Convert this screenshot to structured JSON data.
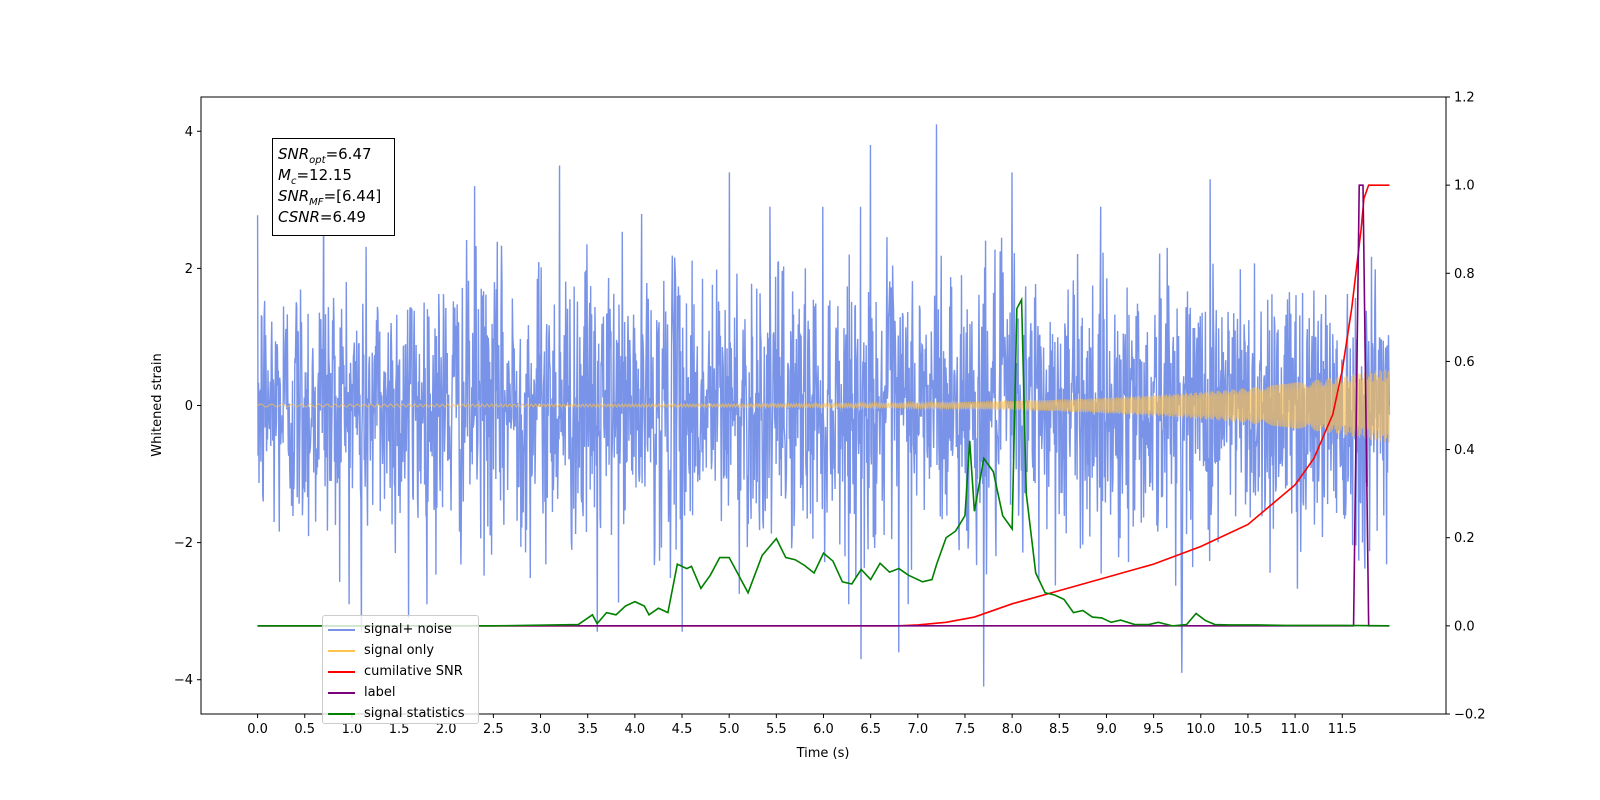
{
  "chart_data": {
    "type": "line",
    "xlabel": "Time (s)",
    "ylabel": "Whitened strain",
    "xlim": [
      -0.6,
      12.6
    ],
    "ylim": [
      -4.5,
      4.5
    ],
    "y2lim": [
      -0.2,
      1.2
    ],
    "x_ticks": [
      "0.0",
      "0.5",
      "1.0",
      "1.5",
      "2.0",
      "2.5",
      "3.0",
      "3.5",
      "4.0",
      "4.5",
      "5.0",
      "5.5",
      "6.0",
      "6.5",
      "7.0",
      "7.5",
      "8.0",
      "8.5",
      "9.0",
      "9.5",
      "10.0",
      "10.5",
      "11.0",
      "11.5"
    ],
    "y_ticks": [
      "4",
      "2",
      "0",
      "−2",
      "−4"
    ],
    "y2_ticks": [
      "1.2",
      "1.0",
      "0.8",
      "0.6",
      "0.4",
      "0.2",
      "0.0",
      "−0.2"
    ],
    "grid": false,
    "legend_position": "lower-left",
    "infobox": {
      "snr_opt_label": "SNR",
      "snr_opt_sub": "opt",
      "snr_opt_value": "=6.47",
      "mc_label": "M",
      "mc_sub": "c",
      "mc_value": "=12.15",
      "snr_mf_label": "SNR",
      "snr_mf_sub": "MF",
      "snr_mf_value": "=[6.44]",
      "csnr_label": "CSNR",
      "csnr_value": "=6.49"
    },
    "series": [
      {
        "name": "signal+ noise",
        "color": "#7893e8",
        "axis": "left",
        "x_range": [
          0,
          12
        ],
        "sample_points": 2400,
        "std": 1.0,
        "peak_values": [
          {
            "x": 0.7,
            "y": 3.0
          },
          {
            "x": 1.1,
            "y": -3.3
          },
          {
            "x": 1.6,
            "y": -3.1
          },
          {
            "x": 2.3,
            "y": 3.2
          },
          {
            "x": 3.2,
            "y": 3.5
          },
          {
            "x": 3.6,
            "y": -3.3
          },
          {
            "x": 4.5,
            "y": -3.3
          },
          {
            "x": 5.0,
            "y": 3.4
          },
          {
            "x": 6.4,
            "y": -3.7
          },
          {
            "x": 6.5,
            "y": 3.8
          },
          {
            "x": 6.8,
            "y": -3.6
          },
          {
            "x": 7.2,
            "y": 4.1
          },
          {
            "x": 7.7,
            "y": -4.1
          },
          {
            "x": 8.0,
            "y": 3.4
          },
          {
            "x": 9.8,
            "y": -3.9
          },
          {
            "x": 10.1,
            "y": 3.3
          }
        ]
      },
      {
        "name": "signal only",
        "color": "#ffc24d",
        "axis": "left",
        "x_range": [
          0,
          12
        ],
        "amplitude_start": 0.02,
        "amplitude_end": 0.55
      },
      {
        "name": "cumilative SNR",
        "color": "#ff0000",
        "axis": "right",
        "points": [
          [
            0,
            0
          ],
          [
            6.8,
            0
          ],
          [
            7.0,
            0.002
          ],
          [
            7.3,
            0.008
          ],
          [
            7.6,
            0.02
          ],
          [
            8.0,
            0.05
          ],
          [
            8.5,
            0.08
          ],
          [
            9.0,
            0.11
          ],
          [
            9.5,
            0.14
          ],
          [
            10.0,
            0.18
          ],
          [
            10.5,
            0.23
          ],
          [
            11.0,
            0.32
          ],
          [
            11.2,
            0.38
          ],
          [
            11.4,
            0.48
          ],
          [
            11.5,
            0.58
          ],
          [
            11.6,
            0.72
          ],
          [
            11.7,
            0.9
          ],
          [
            11.73,
            0.97
          ],
          [
            11.78,
            1.0
          ],
          [
            12.0,
            1.0
          ]
        ]
      },
      {
        "name": "label",
        "color": "#7b007b",
        "axis": "right",
        "points": [
          [
            0,
            0
          ],
          [
            11.62,
            0
          ],
          [
            11.68,
            1.0
          ],
          [
            11.72,
            1.0
          ],
          [
            11.78,
            0
          ],
          [
            12.0,
            0
          ]
        ]
      },
      {
        "name": "signal statistics",
        "color": "#008000",
        "axis": "right",
        "points": [
          [
            0.0,
            0.0
          ],
          [
            2.5,
            0.0
          ],
          [
            3.4,
            0.003
          ],
          [
            3.55,
            0.025
          ],
          [
            3.6,
            0.005
          ],
          [
            3.7,
            0.03
          ],
          [
            3.8,
            0.025
          ],
          [
            3.9,
            0.045
          ],
          [
            4.0,
            0.055
          ],
          [
            4.1,
            0.045
          ],
          [
            4.15,
            0.025
          ],
          [
            4.25,
            0.04
          ],
          [
            4.35,
            0.03
          ],
          [
            4.45,
            0.14
          ],
          [
            4.55,
            0.13
          ],
          [
            4.6,
            0.135
          ],
          [
            4.7,
            0.085
          ],
          [
            4.8,
            0.115
          ],
          [
            4.9,
            0.155
          ],
          [
            5.0,
            0.155
          ],
          [
            5.1,
            0.115
          ],
          [
            5.2,
            0.075
          ],
          [
            5.35,
            0.16
          ],
          [
            5.5,
            0.198
          ],
          [
            5.6,
            0.155
          ],
          [
            5.7,
            0.15
          ],
          [
            5.8,
            0.137
          ],
          [
            5.9,
            0.12
          ],
          [
            6.0,
            0.165
          ],
          [
            6.1,
            0.147
          ],
          [
            6.2,
            0.1
          ],
          [
            6.3,
            0.095
          ],
          [
            6.4,
            0.128
          ],
          [
            6.5,
            0.105
          ],
          [
            6.6,
            0.142
          ],
          [
            6.7,
            0.122
          ],
          [
            6.8,
            0.13
          ],
          [
            6.9,
            0.115
          ],
          [
            7.0,
            0.105
          ],
          [
            7.05,
            0.1
          ],
          [
            7.15,
            0.105
          ],
          [
            7.2,
            0.14
          ],
          [
            7.3,
            0.2
          ],
          [
            7.4,
            0.215
          ],
          [
            7.5,
            0.25
          ],
          [
            7.55,
            0.42
          ],
          [
            7.6,
            0.26
          ],
          [
            7.7,
            0.38
          ],
          [
            7.8,
            0.35
          ],
          [
            7.9,
            0.25
          ],
          [
            8.0,
            0.22
          ],
          [
            8.05,
            0.72
          ],
          [
            8.1,
            0.74
          ],
          [
            8.15,
            0.3
          ],
          [
            8.25,
            0.12
          ],
          [
            8.35,
            0.075
          ],
          [
            8.45,
            0.07
          ],
          [
            8.55,
            0.06
          ],
          [
            8.65,
            0.03
          ],
          [
            8.75,
            0.035
          ],
          [
            8.85,
            0.02
          ],
          [
            8.95,
            0.018
          ],
          [
            9.05,
            0.008
          ],
          [
            9.15,
            0.013
          ],
          [
            9.3,
            0.003
          ],
          [
            9.45,
            0.003
          ],
          [
            9.55,
            0.008
          ],
          [
            9.7,
            0.0
          ],
          [
            9.85,
            0.003
          ],
          [
            9.95,
            0.028
          ],
          [
            10.05,
            0.012
          ],
          [
            10.15,
            0.003
          ],
          [
            10.3,
            0.002
          ],
          [
            10.6,
            0.002
          ],
          [
            10.9,
            0.001
          ],
          [
            11.5,
            0.001
          ],
          [
            12.0,
            0.0
          ]
        ]
      }
    ],
    "legend": [
      {
        "label": "signal+ noise",
        "color": "#7893e8"
      },
      {
        "label": "signal only",
        "color": "#ffc24d"
      },
      {
        "label": "cumilative SNR",
        "color": "#ff0000"
      },
      {
        "label": "label",
        "color": "#7b007b"
      },
      {
        "label": "signal statistics",
        "color": "#008000"
      }
    ]
  }
}
